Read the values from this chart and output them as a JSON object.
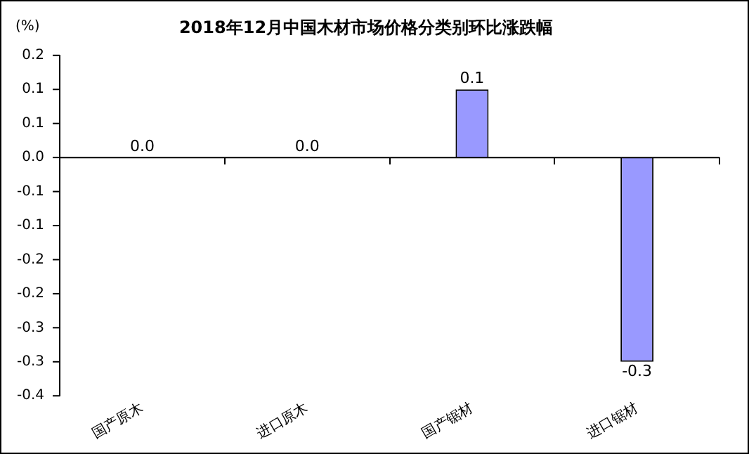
{
  "chart_data": {
    "type": "bar",
    "title": "2018年12月中国木材市场价格分类别环比涨跌幅",
    "ylabel": "(%)",
    "categories": [
      "国产原木",
      "进口原木",
      "国产锯材",
      "进口锯材"
    ],
    "values": [
      0.0,
      0.0,
      0.1,
      -0.3
    ],
    "value_labels": [
      "0.0",
      "0.0",
      "0.1",
      "-0.3"
    ],
    "color": "#9999ff",
    "ylim": [
      -0.35,
      0.15
    ],
    "yticks": [
      {
        "value": 0.15,
        "label": "0.2"
      },
      {
        "value": 0.1,
        "label": "0.1"
      },
      {
        "value": 0.05,
        "label": "0.1"
      },
      {
        "value": 0,
        "label": "0.0"
      },
      {
        "value": -0.05,
        "label": "-0.1"
      },
      {
        "value": -0.1,
        "label": "-0.1"
      },
      {
        "value": -0.15,
        "label": "-0.2"
      },
      {
        "value": -0.2,
        "label": "-0.2"
      },
      {
        "value": -0.25,
        "label": "-0.3"
      },
      {
        "value": -0.3,
        "label": "-0.3"
      },
      {
        "value": -0.35,
        "label": "-0.4"
      }
    ],
    "ref_lines": [
      {
        "axis": "y",
        "value": 0,
        "color": "#000000",
        "line_style": "solid"
      }
    ],
    "grid": false,
    "legend": false
  }
}
